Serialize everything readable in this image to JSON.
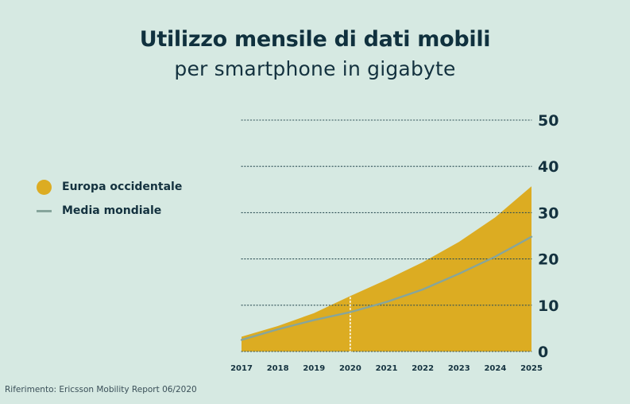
{
  "header": {
    "title": "Utilizzo mensile di dati mobili",
    "subtitle": "per smartphone in gigabyte"
  },
  "legend": {
    "items": [
      {
        "label": "Europa occidentale",
        "shape": "dot",
        "color": "#dcac22"
      },
      {
        "label": "Media mondiale",
        "shape": "line",
        "color": "#86a59c"
      }
    ]
  },
  "footer": {
    "reference": "Riferimento: Ericsson Mobility Report 06/2020"
  },
  "colors": {
    "background": "#d6e9e2",
    "area": "#dcac22",
    "line": "#86a59c",
    "text": "#14323f",
    "grid": "#2d4f55",
    "marker": "#ffffff"
  },
  "chart_data": {
    "type": "area",
    "x": [
      2017,
      2018,
      2019,
      2020,
      2021,
      2022,
      2023,
      2024,
      2025
    ],
    "x_tick_labels": [
      "2017",
      "2018",
      "2019",
      "2020",
      "2021",
      "2022",
      "2023",
      "2024",
      "2025"
    ],
    "series": [
      {
        "name": "Europa occidentale",
        "type": "area",
        "values": [
          3.2,
          5.5,
          8.3,
          12.0,
          15.5,
          19.3,
          23.7,
          29.0,
          35.7
        ]
      },
      {
        "name": "Media mondiale",
        "type": "line",
        "values": [
          2.5,
          4.8,
          6.8,
          8.5,
          10.7,
          13.4,
          16.8,
          20.5,
          24.8
        ]
      }
    ],
    "ylim": [
      0,
      50
    ],
    "y_ticks": [
      0,
      10,
      20,
      30,
      40,
      50
    ],
    "y_tick_labels": [
      "0",
      "10",
      "20",
      "30",
      "40",
      "50"
    ],
    "y_axis_position": "right",
    "grid": "dotted horizontal",
    "vertical_marker_x": 2020,
    "legend_position": "left"
  }
}
